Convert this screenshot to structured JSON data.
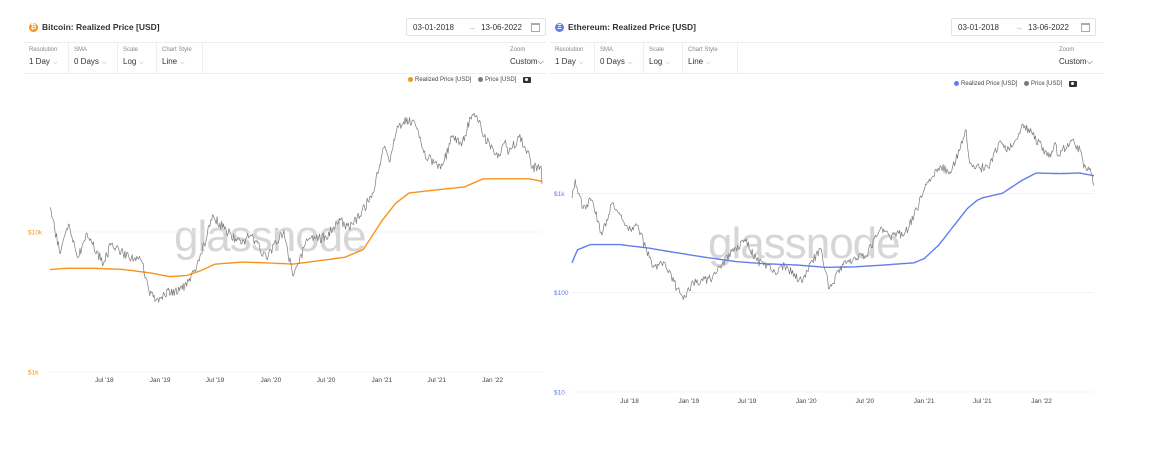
{
  "panels": [
    {
      "title": "Bitcoin: Realized Price [USD]",
      "coin_icon": "bitcoin-icon",
      "icon_color": "#f7931a",
      "date_from": "03-01-2018",
      "date_to": "13-06-2022",
      "arrow": "→",
      "resolution_label": "Resolution",
      "resolution_value": "1 Day",
      "sma_label": "SMA",
      "sma_value": "0 Days",
      "scale_label": "Scale",
      "scale_value": "Log",
      "style_label": "Chart Style",
      "style_value": "Line",
      "zoom_label": "Zoom",
      "zoom_value": "Custom",
      "watermark": "glassnode"
    },
    {
      "title": "Ethereum: Realized Price [USD]",
      "coin_icon": "ethereum-icon",
      "icon_color": "#627eea",
      "date_from": "03-01-2018",
      "date_to": "13-06-2022",
      "arrow": "→",
      "resolution_label": "Resolution",
      "resolution_value": "1 Day",
      "sma_label": "SMA",
      "sma_value": "0 Days",
      "scale_label": "Scale",
      "scale_value": "Log",
      "style_label": "Chart Style",
      "style_value": "Line",
      "zoom_label": "Zoom",
      "zoom_value": "Custom",
      "watermark": "glassnode"
    }
  ],
  "chart_data": [
    {
      "type": "line",
      "title": "Bitcoin: Realized Price [USD]",
      "xlabel": "",
      "ylabel": "",
      "yscale": "log",
      "ylim": [
        1000,
        100000
      ],
      "xlim": [
        "2018-01-03",
        "2022-06-13"
      ],
      "xticks": [
        "Jul '18",
        "Jan '19",
        "Jul '19",
        "Jan '20",
        "Jul '20",
        "Jan '21",
        "Jul '21",
        "Jan '22"
      ],
      "xtick_dates": [
        "2018-07-01",
        "2019-01-01",
        "2019-07-01",
        "2020-01-01",
        "2020-07-01",
        "2021-01-01",
        "2021-07-01",
        "2022-01-01"
      ],
      "yticks": [
        {
          "value": 1000,
          "label": "$1k"
        },
        {
          "value": 10000,
          "label": "$10k"
        }
      ],
      "ytick_color": "#f7931a",
      "legend_position": "top-right",
      "grid": true,
      "series": [
        {
          "name": "Realized Price [USD]",
          "color": "#f7931a",
          "width": 1.4,
          "jitter": 0,
          "points": [
            [
              "2018-01-03",
              5400
            ],
            [
              "2018-03-01",
              5500
            ],
            [
              "2018-06-01",
              5500
            ],
            [
              "2018-09-01",
              5400
            ],
            [
              "2018-12-01",
              5100
            ],
            [
              "2019-02-01",
              4800
            ],
            [
              "2019-04-01",
              4900
            ],
            [
              "2019-05-15",
              5300
            ],
            [
              "2019-07-01",
              5900
            ],
            [
              "2019-10-01",
              6100
            ],
            [
              "2020-01-01",
              6000
            ],
            [
              "2020-03-15",
              5900
            ],
            [
              "2020-06-01",
              6200
            ],
            [
              "2020-09-01",
              6600
            ],
            [
              "2020-11-01",
              7500
            ],
            [
              "2021-01-01",
              12000
            ],
            [
              "2021-02-15",
              16000
            ],
            [
              "2021-04-01",
              19000
            ],
            [
              "2021-07-01",
              20000
            ],
            [
              "2021-10-01",
              21000
            ],
            [
              "2021-12-01",
              24000
            ],
            [
              "2022-03-01",
              24000
            ],
            [
              "2022-05-01",
              24000
            ],
            [
              "2022-06-13",
              23000
            ]
          ]
        },
        {
          "name": "Price [USD]",
          "color": "#7a7a7a",
          "width": 0.7,
          "jitter": 0.035,
          "points": [
            [
              "2018-01-03",
              15000
            ],
            [
              "2018-02-06",
              7000
            ],
            [
              "2018-03-05",
              11400
            ],
            [
              "2018-04-06",
              6600
            ],
            [
              "2018-05-05",
              9800
            ],
            [
              "2018-06-28",
              5900
            ],
            [
              "2018-07-25",
              8300
            ],
            [
              "2018-09-01",
              7000
            ],
            [
              "2018-10-31",
              6300
            ],
            [
              "2018-11-25",
              3800
            ],
            [
              "2018-12-15",
              3200
            ],
            [
              "2019-01-15",
              3600
            ],
            [
              "2019-03-15",
              3900
            ],
            [
              "2019-05-01",
              5500
            ],
            [
              "2019-06-26",
              13000
            ],
            [
              "2019-08-01",
              10500
            ],
            [
              "2019-09-25",
              8200
            ],
            [
              "2019-10-26",
              9500
            ],
            [
              "2019-12-17",
              6600
            ],
            [
              "2020-02-13",
              10300
            ],
            [
              "2020-03-13",
              4900
            ],
            [
              "2020-05-01",
              8700
            ],
            [
              "2020-07-01",
              9200
            ],
            [
              "2020-08-17",
              12200
            ],
            [
              "2020-09-15",
              10700
            ],
            [
              "2020-10-21",
              13000
            ],
            [
              "2020-12-01",
              19000
            ],
            [
              "2021-01-08",
              40000
            ],
            [
              "2021-01-25",
              32000
            ],
            [
              "2021-02-21",
              57000
            ],
            [
              "2021-03-13",
              61000
            ],
            [
              "2021-04-14",
              63000
            ],
            [
              "2021-05-19",
              37000
            ],
            [
              "2021-06-22",
              31000
            ],
            [
              "2021-07-20",
              30000
            ],
            [
              "2021-08-23",
              49000
            ],
            [
              "2021-09-21",
              41000
            ],
            [
              "2021-10-20",
              66000
            ],
            [
              "2021-11-10",
              68000
            ],
            [
              "2021-12-04",
              48000
            ],
            [
              "2022-01-24",
              35000
            ],
            [
              "2022-02-10",
              44000
            ],
            [
              "2022-02-24",
              37000
            ],
            [
              "2022-03-29",
              47500
            ],
            [
              "2022-04-26",
              38000
            ],
            [
              "2022-05-12",
              28500
            ],
            [
              "2022-06-10",
              29500
            ],
            [
              "2022-06-13",
              22000
            ]
          ]
        }
      ]
    },
    {
      "type": "line",
      "title": "Ethereum: Realized Price [USD]",
      "xlabel": "",
      "ylabel": "",
      "yscale": "log",
      "ylim": [
        10,
        10000
      ],
      "xlim": [
        "2018-01-03",
        "2022-06-13"
      ],
      "xticks": [
        "Jul '18",
        "Jan '19",
        "Jul '19",
        "Jan '20",
        "Jul '20",
        "Jan '21",
        "Jul '21",
        "Jan '22"
      ],
      "xtick_dates": [
        "2018-07-01",
        "2019-01-01",
        "2019-07-01",
        "2020-01-01",
        "2020-07-01",
        "2021-01-01",
        "2021-07-01",
        "2022-01-01"
      ],
      "yticks": [
        {
          "value": 10,
          "label": "$10"
        },
        {
          "value": 100,
          "label": "$100"
        },
        {
          "value": 1000,
          "label": "$1k"
        }
      ],
      "ytick_color": "#627eea",
      "legend_position": "top-right",
      "grid": true,
      "series": [
        {
          "name": "Realized Price [USD]",
          "color": "#627eea",
          "width": 1.4,
          "jitter": 0,
          "points": [
            [
              "2018-01-03",
              200
            ],
            [
              "2018-01-20",
              270
            ],
            [
              "2018-03-01",
              305
            ],
            [
              "2018-06-01",
              305
            ],
            [
              "2018-09-01",
              280
            ],
            [
              "2018-12-01",
              250
            ],
            [
              "2019-03-01",
              225
            ],
            [
              "2019-06-01",
              205
            ],
            [
              "2019-09-01",
              195
            ],
            [
              "2019-12-01",
              190
            ],
            [
              "2020-03-01",
              180
            ],
            [
              "2020-06-01",
              182
            ],
            [
              "2020-09-01",
              190
            ],
            [
              "2020-12-01",
              200
            ],
            [
              "2021-01-01",
              220
            ],
            [
              "2021-02-15",
              300
            ],
            [
              "2021-04-01",
              460
            ],
            [
              "2021-05-15",
              700
            ],
            [
              "2021-06-15",
              850
            ],
            [
              "2021-07-01",
              900
            ],
            [
              "2021-09-01",
              1000
            ],
            [
              "2021-11-01",
              1350
            ],
            [
              "2021-12-15",
              1600
            ],
            [
              "2022-03-01",
              1580
            ],
            [
              "2022-05-01",
              1600
            ],
            [
              "2022-06-13",
              1500
            ]
          ]
        },
        {
          "name": "Price [USD]",
          "color": "#7a7a7a",
          "width": 0.7,
          "jitter": 0.045,
          "points": [
            [
              "2018-01-03",
              900
            ],
            [
              "2018-01-13",
              1380
            ],
            [
              "2018-02-06",
              700
            ],
            [
              "2018-03-05",
              860
            ],
            [
              "2018-04-06",
              380
            ],
            [
              "2018-05-06",
              780
            ],
            [
              "2018-06-28",
              420
            ],
            [
              "2018-07-24",
              480
            ],
            [
              "2018-09-12",
              180
            ],
            [
              "2018-10-20",
              200
            ],
            [
              "2018-11-25",
              110
            ],
            [
              "2018-12-15",
              85
            ],
            [
              "2019-01-15",
              125
            ],
            [
              "2019-03-15",
              140
            ],
            [
              "2019-05-15",
              260
            ],
            [
              "2019-06-26",
              330
            ],
            [
              "2019-08-01",
              210
            ],
            [
              "2019-09-25",
              165
            ],
            [
              "2019-10-26",
              185
            ],
            [
              "2019-12-17",
              130
            ],
            [
              "2020-02-13",
              280
            ],
            [
              "2020-03-13",
              110
            ],
            [
              "2020-05-01",
              210
            ],
            [
              "2020-07-01",
              230
            ],
            [
              "2020-08-17",
              430
            ],
            [
              "2020-09-15",
              370
            ],
            [
              "2020-11-01",
              390
            ],
            [
              "2020-12-01",
              600
            ],
            [
              "2021-01-08",
              1220
            ],
            [
              "2021-02-20",
              1900
            ],
            [
              "2021-03-25",
              1600
            ],
            [
              "2021-05-12",
              4300
            ],
            [
              "2021-05-23",
              2000
            ],
            [
              "2021-06-22",
              1800
            ],
            [
              "2021-07-20",
              1800
            ],
            [
              "2021-08-23",
              3300
            ],
            [
              "2021-09-21",
              2800
            ],
            [
              "2021-10-29",
              4400
            ],
            [
              "2021-11-10",
              4800
            ],
            [
              "2021-12-04",
              3900
            ],
            [
              "2022-01-24",
              2300
            ],
            [
              "2022-02-10",
              3200
            ],
            [
              "2022-02-24",
              2400
            ],
            [
              "2022-04-01",
              3400
            ],
            [
              "2022-05-01",
              2700
            ],
            [
              "2022-05-12",
              1800
            ],
            [
              "2022-06-01",
              1800
            ],
            [
              "2022-06-13",
              1200
            ]
          ]
        }
      ]
    }
  ]
}
